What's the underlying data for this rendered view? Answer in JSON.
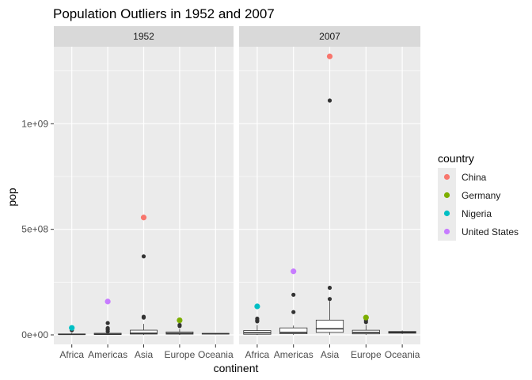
{
  "chart_data": {
    "type": "boxplot",
    "title": "Population Outliers in 1952 and 2007",
    "xlabel": "continent",
    "ylabel": "pop",
    "ylim": [
      -45000000,
      1365000000
    ],
    "y_ticks": [
      {
        "value": 0,
        "label": "0e+00"
      },
      {
        "value": 500000000,
        "label": "5e+08"
      },
      {
        "value": 1000000000,
        "label": "1e+09"
      }
    ],
    "grid": true,
    "categories": [
      "Africa",
      "Americas",
      "Asia",
      "Europe",
      "Oceania"
    ],
    "facets": [
      {
        "label": "1952",
        "boxes": [
          {
            "category": "Africa",
            "low": 60000,
            "q1": 1400000,
            "median": 2300000,
            "q3": 4500000,
            "high": 9000000
          },
          {
            "category": "Americas",
            "low": 660000,
            "q1": 1700000,
            "median": 3100000,
            "q3": 7700000,
            "high": 15000000
          },
          {
            "category": "Asia",
            "low": 120000,
            "q1": 3800000,
            "median": 7900000,
            "q3": 22300000,
            "high": 52000000
          },
          {
            "category": "Europe",
            "low": 150000,
            "q1": 3500000,
            "median": 7400000,
            "q3": 14000000,
            "high": 28000000
          },
          {
            "category": "Oceania",
            "low": 1990000,
            "q1": 3900000,
            "median": 5400000,
            "q3": 6900000,
            "high": 8700000
          }
        ],
        "outliers": [
          {
            "category": "Africa",
            "value": 22000000
          },
          {
            "category": "Africa",
            "value": 26000000
          },
          {
            "category": "Americas",
            "value": 17000000
          },
          {
            "category": "Americas",
            "value": 26000000
          },
          {
            "category": "Americas",
            "value": 32000000
          },
          {
            "category": "Americas",
            "value": 56000000
          },
          {
            "category": "Asia",
            "value": 82000000
          },
          {
            "category": "Asia",
            "value": 86000000
          },
          {
            "category": "Asia",
            "value": 372000000
          },
          {
            "category": "Europe",
            "value": 42000000
          },
          {
            "category": "Europe",
            "value": 47000000
          }
        ],
        "highlights": [
          {
            "country": "China",
            "category": "Asia",
            "value": 556000000
          },
          {
            "country": "Germany",
            "category": "Europe",
            "value": 69000000
          },
          {
            "country": "Nigeria",
            "category": "Africa",
            "value": 33000000
          },
          {
            "country": "United States",
            "category": "Americas",
            "value": 158000000
          }
        ]
      },
      {
        "label": "2007",
        "boxes": [
          {
            "category": "Africa",
            "low": 200000,
            "q1": 2900000,
            "median": 10100000,
            "q3": 20300000,
            "high": 47000000
          },
          {
            "category": "Americas",
            "low": 360000,
            "q1": 5600000,
            "median": 12000000,
            "q3": 33000000,
            "high": 44000000
          },
          {
            "category": "Asia",
            "low": 700000,
            "q1": 12000000,
            "median": 29000000,
            "q3": 70000000,
            "high": 160000000
          },
          {
            "category": "Europe",
            "low": 300000,
            "q1": 4800000,
            "median": 11000000,
            "q3": 22000000,
            "high": 47000000
          },
          {
            "category": "Oceania",
            "low": 4100000,
            "q1": 8000000,
            "median": 12000000,
            "q3": 16000000,
            "high": 20400000
          }
        ],
        "outliers": [
          {
            "category": "Africa",
            "value": 64000000
          },
          {
            "category": "Africa",
            "value": 69000000
          },
          {
            "category": "Africa",
            "value": 77000000
          },
          {
            "category": "Americas",
            "value": 108000000
          },
          {
            "category": "Americas",
            "value": 190000000
          },
          {
            "category": "Asia",
            "value": 170000000
          },
          {
            "category": "Asia",
            "value": 223000000
          },
          {
            "category": "Asia",
            "value": 1110000000
          },
          {
            "category": "Europe",
            "value": 61000000
          },
          {
            "category": "Europe",
            "value": 71000000
          }
        ],
        "highlights": [
          {
            "country": "China",
            "category": "Asia",
            "value": 1319000000
          },
          {
            "country": "Germany",
            "category": "Europe",
            "value": 82000000
          },
          {
            "country": "Nigeria",
            "category": "Africa",
            "value": 135000000
          },
          {
            "country": "United States",
            "category": "Americas",
            "value": 301000000
          }
        ]
      }
    ],
    "legend": {
      "title": "country",
      "placement": "right",
      "entries": [
        {
          "name": "China",
          "color": "#F8766D"
        },
        {
          "name": "Germany",
          "color": "#7CAE00"
        },
        {
          "name": "Nigeria",
          "color": "#00BFC4"
        },
        {
          "name": "United States",
          "color": "#C77CFF"
        }
      ]
    },
    "colors": {
      "panel_bg": "#EBEBEB",
      "strip_bg": "#D9D9D9",
      "grid": "#FFFFFF",
      "box_line": "#333333",
      "outlier": "#333333",
      "text": "#1A1A1A",
      "tick_text": "#4D4D4D"
    }
  }
}
